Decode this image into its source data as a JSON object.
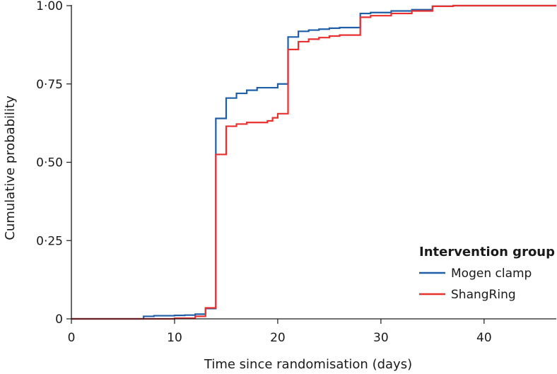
{
  "chart_data": {
    "type": "line",
    "step": true,
    "title": "",
    "xlabel": "Time since randomisation (days)",
    "ylabel": "Cumulative probability",
    "xlim": [
      0,
      47
    ],
    "ylim": [
      0,
      1
    ],
    "x_ticks": [
      0,
      10,
      20,
      30,
      40
    ],
    "x_tick_labels": [
      "0",
      "10",
      "20",
      "30",
      "40"
    ],
    "y_ticks": [
      0,
      0.25,
      0.5,
      0.75,
      1
    ],
    "y_tick_labels": [
      "0",
      "0·25",
      "0·50",
      "0·75",
      "1·00"
    ],
    "legend": {
      "title": "Intervention group",
      "placement": "bottom-right"
    },
    "series": [
      {
        "name": "Mogen clamp",
        "color": "#1f5fa8",
        "points": [
          [
            0,
            0
          ],
          [
            7,
            0.008
          ],
          [
            8,
            0.01
          ],
          [
            10,
            0.011
          ],
          [
            11,
            0.012
          ],
          [
            12,
            0.015
          ],
          [
            13,
            0.033
          ],
          [
            14,
            0.64
          ],
          [
            15,
            0.705
          ],
          [
            16,
            0.72
          ],
          [
            17,
            0.73
          ],
          [
            18,
            0.738
          ],
          [
            20,
            0.75
          ],
          [
            21,
            0.9
          ],
          [
            22,
            0.918
          ],
          [
            23,
            0.922
          ],
          [
            24,
            0.925
          ],
          [
            25,
            0.928
          ],
          [
            26,
            0.93
          ],
          [
            28,
            0.975
          ],
          [
            29,
            0.978
          ],
          [
            31,
            0.983
          ],
          [
            33,
            0.987
          ],
          [
            35,
            0.998
          ],
          [
            37,
            1.0
          ],
          [
            47,
            1.0
          ]
        ]
      },
      {
        "name": "ShangRing",
        "color": "#e8312f",
        "points": [
          [
            0,
            0
          ],
          [
            10,
            0.002
          ],
          [
            12,
            0.008
          ],
          [
            13,
            0.035
          ],
          [
            14,
            0.525
          ],
          [
            15,
            0.615
          ],
          [
            16,
            0.622
          ],
          [
            17,
            0.627
          ],
          [
            19,
            0.632
          ],
          [
            19.5,
            0.642
          ],
          [
            20,
            0.655
          ],
          [
            21,
            0.86
          ],
          [
            22,
            0.885
          ],
          [
            23,
            0.893
          ],
          [
            24,
            0.898
          ],
          [
            25,
            0.903
          ],
          [
            26,
            0.906
          ],
          [
            28,
            0.963
          ],
          [
            29,
            0.968
          ],
          [
            31,
            0.975
          ],
          [
            33,
            0.983
          ],
          [
            35,
            0.998
          ],
          [
            37,
            1.0
          ],
          [
            47,
            1.0
          ]
        ]
      }
    ]
  }
}
